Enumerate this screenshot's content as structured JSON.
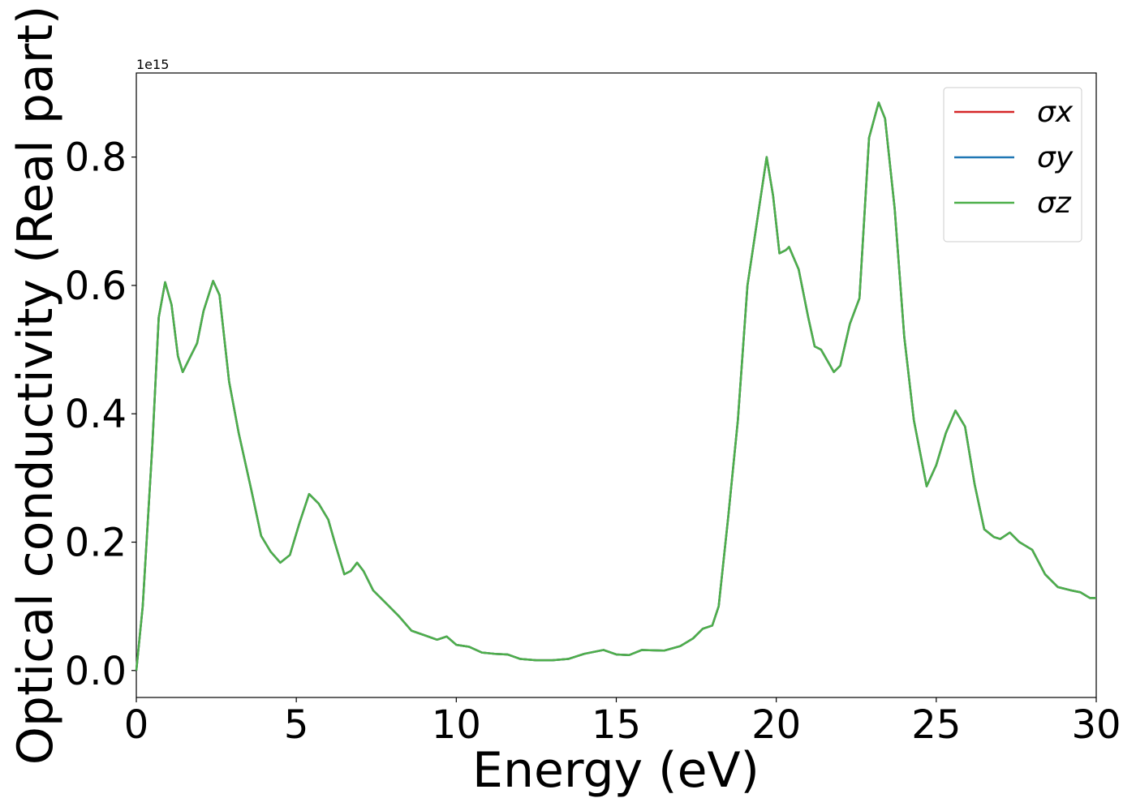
{
  "chart_data": {
    "type": "line",
    "x_label": "Energy (eV)",
    "y_label": "Optical conductivity (Real part)",
    "y_offset_label": "1e15",
    "x": [
      0,
      0.2,
      0.5,
      0.7,
      0.9,
      1.1,
      1.3,
      1.45,
      1.7,
      1.9,
      2.1,
      2.4,
      2.6,
      2.9,
      3.2,
      3.6,
      3.9,
      4.2,
      4.5,
      4.8,
      5.1,
      5.4,
      5.7,
      6.0,
      6.2,
      6.5,
      6.7,
      6.9,
      7.1,
      7.4,
      7.8,
      8.2,
      8.6,
      9.0,
      9.4,
      9.7,
      10.0,
      10.4,
      10.8,
      11.2,
      11.6,
      12.0,
      12.5,
      13.0,
      13.5,
      14.0,
      14.6,
      15.0,
      15.4,
      15.8,
      16.5,
      17.0,
      17.4,
      17.7,
      18.0,
      18.2,
      18.5,
      18.8,
      19.1,
      19.4,
      19.7,
      19.9,
      20.1,
      20.3,
      20.4,
      20.7,
      21.0,
      21.2,
      21.4,
      21.8,
      22.0,
      22.3,
      22.6,
      22.9,
      23.2,
      23.4,
      23.7,
      24.0,
      24.3,
      24.7,
      25.0,
      25.3,
      25.6,
      25.9,
      26.2,
      26.5,
      26.8,
      27.0,
      27.3,
      27.6,
      28.0,
      28.4,
      28.8,
      29.2,
      29.5,
      29.8,
      30.0
    ],
    "series": [
      {
        "name": "σx",
        "color": "#d62728",
        "values": [
          0,
          0.1,
          0.35,
          0.55,
          0.605,
          0.57,
          0.49,
          0.465,
          0.49,
          0.51,
          0.56,
          0.607,
          0.585,
          0.45,
          0.37,
          0.28,
          0.21,
          0.185,
          0.168,
          0.18,
          0.23,
          0.275,
          0.26,
          0.235,
          0.2,
          0.15,
          0.155,
          0.168,
          0.155,
          0.125,
          0.105,
          0.085,
          0.062,
          0.055,
          0.048,
          0.053,
          0.04,
          0.037,
          0.028,
          0.026,
          0.025,
          0.018,
          0.016,
          0.016,
          0.018,
          0.026,
          0.032,
          0.025,
          0.024,
          0.032,
          0.031,
          0.038,
          0.05,
          0.065,
          0.07,
          0.1,
          0.24,
          0.39,
          0.6,
          0.7,
          0.8,
          0.74,
          0.65,
          0.655,
          0.66,
          0.625,
          0.55,
          0.505,
          0.5,
          0.465,
          0.475,
          0.54,
          0.58,
          0.83,
          0.885,
          0.86,
          0.72,
          0.52,
          0.39,
          0.287,
          0.32,
          0.37,
          0.405,
          0.38,
          0.29,
          0.22,
          0.208,
          0.205,
          0.215,
          0.2,
          0.188,
          0.15,
          0.13,
          0.125,
          0.122,
          0.113,
          0.113
        ]
      },
      {
        "name": "σy",
        "color": "#1f77b4",
        "values": [
          0,
          0.1,
          0.35,
          0.55,
          0.605,
          0.57,
          0.49,
          0.465,
          0.49,
          0.51,
          0.56,
          0.607,
          0.585,
          0.45,
          0.37,
          0.28,
          0.21,
          0.185,
          0.168,
          0.18,
          0.23,
          0.275,
          0.26,
          0.235,
          0.2,
          0.15,
          0.155,
          0.168,
          0.155,
          0.125,
          0.105,
          0.085,
          0.062,
          0.055,
          0.048,
          0.053,
          0.04,
          0.037,
          0.028,
          0.026,
          0.025,
          0.018,
          0.016,
          0.016,
          0.018,
          0.026,
          0.032,
          0.025,
          0.024,
          0.032,
          0.031,
          0.038,
          0.05,
          0.065,
          0.07,
          0.1,
          0.24,
          0.39,
          0.6,
          0.7,
          0.8,
          0.74,
          0.65,
          0.655,
          0.66,
          0.625,
          0.55,
          0.505,
          0.5,
          0.465,
          0.475,
          0.54,
          0.58,
          0.83,
          0.885,
          0.86,
          0.72,
          0.52,
          0.39,
          0.287,
          0.32,
          0.37,
          0.405,
          0.38,
          0.29,
          0.22,
          0.208,
          0.205,
          0.215,
          0.2,
          0.188,
          0.15,
          0.13,
          0.125,
          0.122,
          0.113,
          0.113
        ]
      },
      {
        "name": "σz",
        "color": "#4daf4a",
        "values": [
          0,
          0.1,
          0.35,
          0.55,
          0.605,
          0.57,
          0.49,
          0.465,
          0.49,
          0.51,
          0.56,
          0.607,
          0.585,
          0.45,
          0.37,
          0.28,
          0.21,
          0.185,
          0.168,
          0.18,
          0.23,
          0.275,
          0.26,
          0.235,
          0.2,
          0.15,
          0.155,
          0.168,
          0.155,
          0.125,
          0.105,
          0.085,
          0.062,
          0.055,
          0.048,
          0.053,
          0.04,
          0.037,
          0.028,
          0.026,
          0.025,
          0.018,
          0.016,
          0.016,
          0.018,
          0.026,
          0.032,
          0.025,
          0.024,
          0.032,
          0.031,
          0.038,
          0.05,
          0.065,
          0.07,
          0.1,
          0.24,
          0.39,
          0.6,
          0.7,
          0.8,
          0.74,
          0.65,
          0.655,
          0.66,
          0.625,
          0.55,
          0.505,
          0.5,
          0.465,
          0.475,
          0.54,
          0.58,
          0.83,
          0.885,
          0.86,
          0.72,
          0.52,
          0.39,
          0.287,
          0.32,
          0.37,
          0.405,
          0.38,
          0.29,
          0.22,
          0.208,
          0.205,
          0.215,
          0.2,
          0.188,
          0.15,
          0.13,
          0.125,
          0.122,
          0.113,
          0.113
        ]
      }
    ],
    "xlim": [
      0,
      30
    ],
    "xticks": [
      0,
      5,
      10,
      15,
      20,
      25,
      30
    ],
    "ylim": [
      -0.042,
      0.931
    ],
    "yticks": [
      {
        "value": 0,
        "label": "0.0"
      },
      {
        "value": 0.2,
        "label": "0.2"
      },
      {
        "value": 0.4,
        "label": "0.4"
      },
      {
        "value": 0.6,
        "label": "0.6"
      },
      {
        "value": 0.8,
        "label": "0.8"
      }
    ],
    "grid": false,
    "legend": "upper right"
  }
}
